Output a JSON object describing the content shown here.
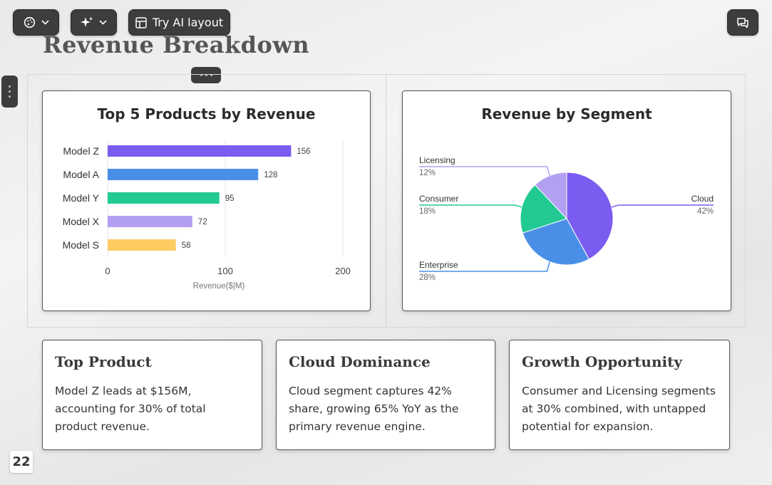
{
  "toolbar": {
    "theme_icon": "palette-icon",
    "ai_icon": "sparkles-icon",
    "layout_label": "Try AI layout",
    "layout_icon": "layout-icon",
    "comments_icon": "comments-icon"
  },
  "slide": {
    "title": "Revenue Breakdown",
    "page_number": "22"
  },
  "chart_data": [
    {
      "type": "bar",
      "orientation": "horizontal",
      "title": "Top 5 Products by Revenue",
      "categories": [
        "Model Z",
        "Model A",
        "Model Y",
        "Model X",
        "Model S"
      ],
      "values": [
        156,
        128,
        95,
        72,
        58
      ],
      "colors": [
        "#7b5cf0",
        "#4a8fe7",
        "#22c993",
        "#b3a0f2",
        "#fdcd63"
      ],
      "xlabel": "Revenue($|M)",
      "ylabel": "",
      "xlim": [
        0,
        200
      ],
      "xticks": [
        "0",
        "100",
        "200"
      ],
      "grid": true
    },
    {
      "type": "pie",
      "title": "Revenue by Segment",
      "slices": [
        {
          "label": "Cloud",
          "value": 42,
          "display": "42%",
          "color": "#7b5cf0"
        },
        {
          "label": "Enterprise",
          "value": 28,
          "display": "28%",
          "color": "#4a8fe7"
        },
        {
          "label": "Consumer",
          "value": 18,
          "display": "18%",
          "color": "#22c993"
        },
        {
          "label": "Licensing",
          "value": 12,
          "display": "12%",
          "color": "#b3a0f2"
        }
      ]
    }
  ],
  "insights": [
    {
      "title": "Top Product",
      "body": "Model Z leads at $156M, accounting for 30% of total product revenue."
    },
    {
      "title": "Cloud Dominance",
      "body": "Cloud segment captures 42% share, growing 65% YoY as the primary revenue engine."
    },
    {
      "title": "Growth Opportunity",
      "body": "Consumer and Licensing segments at 30% combined, with untapped potential for expansion."
    }
  ]
}
